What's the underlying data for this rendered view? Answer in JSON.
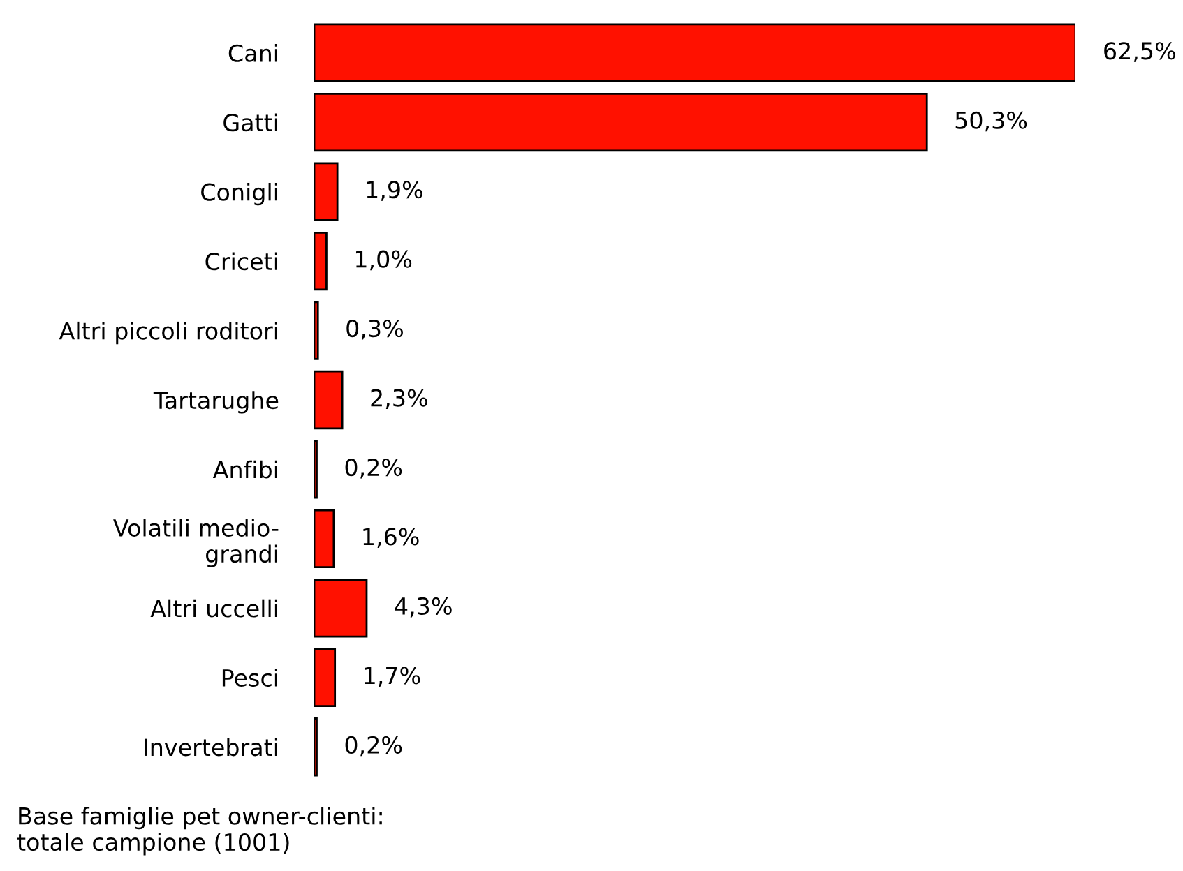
{
  "chart_data": {
    "type": "bar",
    "orientation": "horizontal",
    "categories": [
      "Cani",
      "Gatti",
      "Conigli",
      "Criceti",
      "Altri piccoli roditori",
      "Tartarughe",
      "Anfibi",
      "Volatili medio-\ngrandi",
      "Altri uccelli",
      "Pesci",
      "Invertebrati"
    ],
    "values": [
      62.5,
      50.3,
      1.9,
      1.0,
      0.3,
      2.3,
      0.2,
      1.6,
      4.3,
      1.7,
      0.2
    ],
    "value_labels": [
      "62,5%",
      "50,3%",
      "1,9%",
      "1,0%",
      "0,3%",
      "2,3%",
      "0,2%",
      "1,6%",
      "4,3%",
      "1,7%",
      "0,2%"
    ],
    "color": "#ff1100",
    "grid": false,
    "legend": false,
    "annotations": [
      "Base famiglie pet owner-clienti:\ntotale campione (1001)"
    ]
  }
}
